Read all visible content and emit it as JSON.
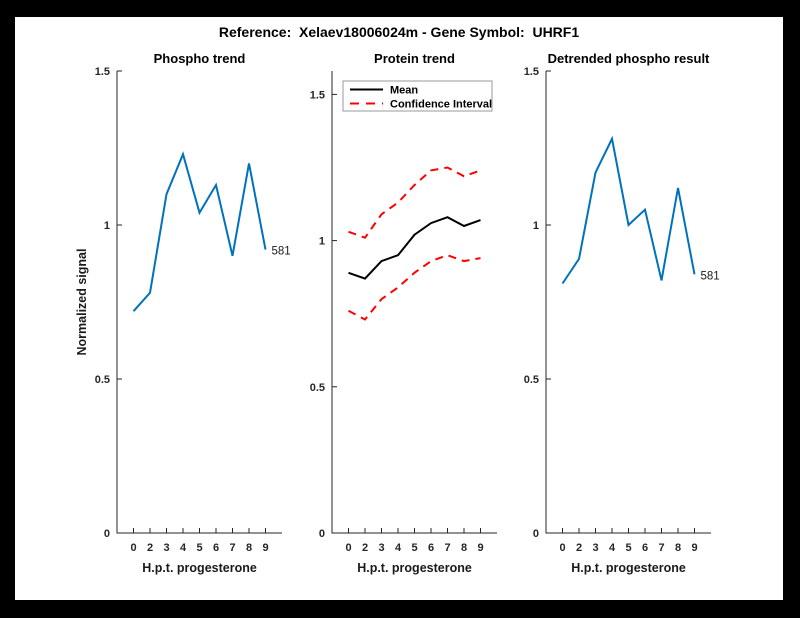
{
  "figure_title": "Reference:  Xelaev18006024m - Gene Symbol:  UHRF1",
  "colors": {
    "frame": "#000000",
    "background": "#ffffff",
    "axis": "#262626",
    "label_text": "#1a1a1a",
    "blue_line": "#0072BD",
    "red_dashed": "#ff0000",
    "black_line": "#000000",
    "legend_border": "#999999"
  },
  "chart_data": [
    {
      "id": "phospho-trend",
      "type": "line",
      "title": "Phospho trend",
      "xlabel": "H.p.t. progesterone",
      "ylabel": "Normalized signal",
      "x_tick_labels": [
        "0",
        "2",
        "3",
        "4",
        "5",
        "6",
        "7",
        "8",
        "9"
      ],
      "y_ticks": [
        0,
        0.5,
        1,
        1.5
      ],
      "y_tick_labels": [
        "0",
        "0.5",
        "1",
        "1.5"
      ],
      "xlim": [
        0,
        10
      ],
      "ylim": [
        0,
        1.5
      ],
      "grid": false,
      "legend": null,
      "end_label": "581",
      "series": [
        {
          "name": "phospho",
          "color": "#0072BD",
          "dash": "solid",
          "values": [
            0.72,
            0.78,
            1.1,
            1.23,
            1.04,
            1.13,
            0.9,
            1.2,
            0.92
          ]
        }
      ]
    },
    {
      "id": "protein-trend",
      "type": "line",
      "title": "Protein trend",
      "xlabel": "H.p.t. progesterone",
      "ylabel": "",
      "x_tick_labels": [
        "0",
        "2",
        "3",
        "4",
        "5",
        "6",
        "7",
        "8",
        "9"
      ],
      "y_ticks": [
        0,
        0.5,
        1,
        1.5
      ],
      "y_tick_labels": [
        "0",
        "0.5",
        "1",
        "1.5"
      ],
      "xlim": [
        0,
        10
      ],
      "ylim": [
        0,
        1.58
      ],
      "grid": false,
      "end_label": null,
      "series": [
        {
          "name": "mean",
          "color": "#000000",
          "dash": "solid",
          "values": [
            0.89,
            0.87,
            0.93,
            0.95,
            1.02,
            1.06,
            1.08,
            1.05,
            1.07
          ]
        },
        {
          "name": "ci-upper",
          "color": "#ff0000",
          "dash": "dashed",
          "values": [
            1.03,
            1.01,
            1.09,
            1.13,
            1.19,
            1.24,
            1.25,
            1.22,
            1.24
          ]
        },
        {
          "name": "ci-lower",
          "color": "#ff0000",
          "dash": "dashed",
          "values": [
            0.76,
            0.73,
            0.8,
            0.84,
            0.89,
            0.93,
            0.95,
            0.93,
            0.94
          ]
        }
      ],
      "legend": {
        "position": "top-left",
        "entries": [
          {
            "label": "Mean",
            "color": "#000000",
            "dash": "solid"
          },
          {
            "label": "Confidence Interval",
            "color": "#ff0000",
            "dash": "dashed"
          }
        ]
      }
    },
    {
      "id": "detrended-phospho",
      "type": "line",
      "title": "Detrended phospho result",
      "xlabel": "H.p.t. progesterone",
      "ylabel": "",
      "x_tick_labels": [
        "0",
        "2",
        "3",
        "4",
        "5",
        "6",
        "7",
        "8",
        "9"
      ],
      "y_ticks": [
        0,
        0.5,
        1,
        1.5
      ],
      "y_tick_labels": [
        "0",
        "0.5",
        "1",
        "1.5"
      ],
      "xlim": [
        0,
        10
      ],
      "ylim": [
        0,
        1.5
      ],
      "grid": false,
      "legend": null,
      "end_label": "581",
      "series": [
        {
          "name": "detrended",
          "color": "#0072BD",
          "dash": "solid",
          "values": [
            0.81,
            0.89,
            1.17,
            1.28,
            1.0,
            1.05,
            0.82,
            1.12,
            0.84
          ]
        }
      ]
    }
  ]
}
